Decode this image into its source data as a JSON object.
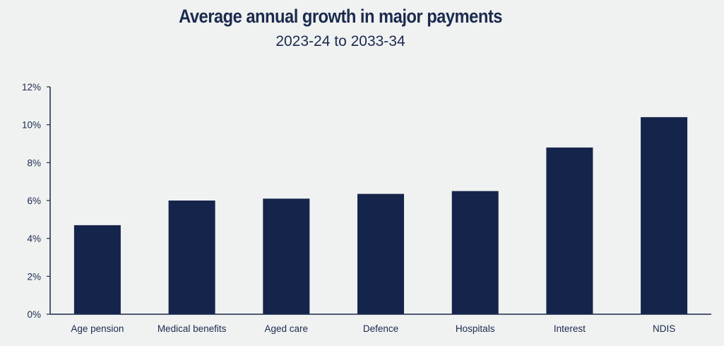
{
  "chart_data": {
    "type": "bar",
    "title": "Average annual growth in major payments",
    "subtitle": "2023-24 to 2033-34",
    "xlabel": "",
    "ylabel": "",
    "categories": [
      "Age pension",
      "Medical benefits",
      "Aged care",
      "Defence",
      "Hospitals",
      "Interest",
      "NDIS"
    ],
    "values": [
      4.7,
      6.0,
      6.1,
      6.35,
      6.5,
      8.8,
      10.4
    ],
    "ylim": [
      0,
      12
    ],
    "yticks": [
      0,
      2,
      4,
      6,
      8,
      10,
      12
    ],
    "ytick_labels": [
      "0%",
      "2%",
      "4%",
      "6%",
      "8%",
      "10%",
      "12%"
    ],
    "grid": false,
    "bar_color": "#15244b",
    "axis_color": "#1b2a4e",
    "background": "#f0f2f1"
  }
}
